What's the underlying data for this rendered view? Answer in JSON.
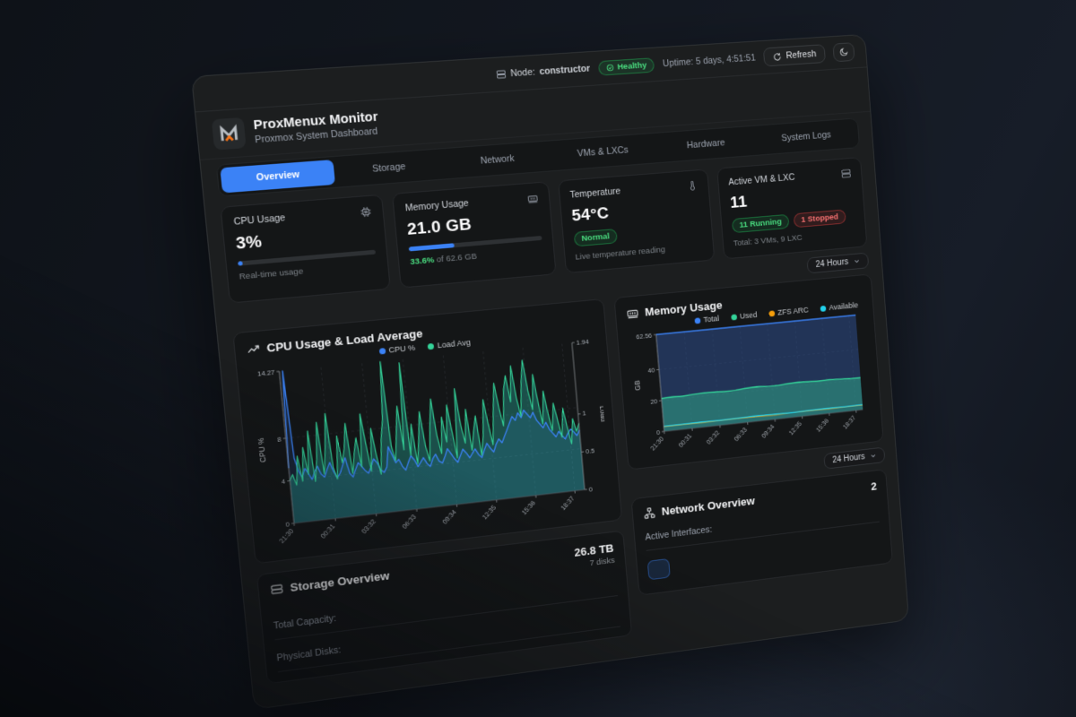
{
  "colors": {
    "accent_blue": "#3b82f6",
    "green": "#34d399",
    "green_text": "#4ade80",
    "orange": "#f59e0b",
    "cyan": "#22d3ee",
    "red": "#f87171",
    "logo_orange": "#f97316",
    "panel_bg": "#1c1e1f",
    "card_bg": "#141617"
  },
  "topbar": {
    "node_icon": "server-icon",
    "node_label": "Node:",
    "node_value": "constructor",
    "health_label": "Healthy",
    "uptime": "Uptime: 5 days, 4:51:51",
    "refresh_label": "Refresh",
    "theme_icon": "moon-icon"
  },
  "header": {
    "title": "ProxMenux Monitor",
    "subtitle": "Proxmox System Dashboard"
  },
  "tabs": [
    {
      "label": "Overview",
      "active": true
    },
    {
      "label": "Storage",
      "active": false
    },
    {
      "label": "Network",
      "active": false
    },
    {
      "label": "VMs & LXCs",
      "active": false
    },
    {
      "label": "Hardware",
      "active": false
    },
    {
      "label": "System Logs",
      "active": false
    }
  ],
  "stats": {
    "cpu": {
      "title": "CPU Usage",
      "icon": "cpu-icon",
      "value": "3%",
      "percent": 3,
      "caption": "Real-time usage"
    },
    "memory": {
      "title": "Memory Usage",
      "icon": "memory-icon",
      "value": "21.0 GB",
      "percent": 33.6,
      "caption_highlight": "33.6%",
      "caption_rest": " of 62.6 GB"
    },
    "temperature": {
      "title": "Temperature",
      "icon": "thermometer-icon",
      "value": "54°C",
      "badge": "Normal",
      "caption": "Live temperature reading"
    },
    "vms": {
      "title": "Active VM & LXC",
      "icon": "server-icon",
      "value": "11",
      "badge_running": "11 Running",
      "badge_stopped": "1 Stopped",
      "caption": "Total: 3 VMs, 9 LXC"
    }
  },
  "time_range_top": {
    "label": "24 Hours"
  },
  "time_range_bottom": {
    "label": "24 Hours"
  },
  "storage": {
    "icon": "hard-drive-icon",
    "title": "Storage Overview",
    "summary_value": "26.8 TB",
    "summary_caption": "7 disks",
    "row1_label": "Total Capacity:",
    "row2_label": "Physical Disks:"
  },
  "network": {
    "icon": "network-icon",
    "title": "Network Overview",
    "summary_value": "2",
    "row_label": "Active Interfaces:"
  },
  "chart_data": [
    {
      "type": "line",
      "title": "CPU Usage & Load Average",
      "icon": "trending-up-icon",
      "x_ticks": [
        "21:30",
        "00:31",
        "03:32",
        "06:33",
        "09:34",
        "12:35",
        "15:36",
        "18:37"
      ],
      "y_left": {
        "label": "CPU %",
        "ticks": [
          0,
          4,
          8,
          14.27
        ],
        "max": 14.27
      },
      "y_right": {
        "label": "Load",
        "ticks": [
          0,
          0.5,
          1,
          1.94
        ],
        "max": 1.94
      },
      "grid": true,
      "legend_position": "top-center",
      "series": [
        {
          "name": "CPU %",
          "color": "#3b82f6",
          "axis": "left",
          "width": 1.3,
          "fill": "rgba(59,130,246,0.14)",
          "values": [
            5.2,
            14.27,
            6.1,
            4.8,
            4.2,
            5.0,
            4.5,
            3.9,
            4.6,
            5.1,
            4.3,
            4.0,
            4.7,
            5.3,
            4.4,
            3.8,
            4.2,
            4.9,
            5.6,
            4.1,
            3.7,
            4.4,
            5.0,
            4.6,
            4.2,
            3.9,
            4.5,
            5.2,
            4.8,
            4.1,
            3.8,
            4.3,
            6.2,
            5.4,
            4.6,
            4.9,
            4.2,
            3.8,
            4.5,
            5.1,
            4.7,
            4.0,
            4.4,
            4.8,
            4.2,
            3.9,
            4.6,
            5.0,
            4.3,
            4.1,
            4.7,
            5.4,
            4.9,
            4.4,
            4.0,
            4.6,
            5.2,
            4.8,
            4.3,
            4.7,
            5.1,
            4.5,
            4.2,
            4.9,
            5.5,
            5.0,
            4.6,
            5.3,
            5.8,
            5.4,
            6.0,
            6.6,
            7.2,
            7.8,
            7.4,
            8.1,
            7.6,
            8.3,
            7.9,
            7.5,
            8.0,
            7.2,
            6.8,
            6.4,
            6.9,
            6.2,
            5.8,
            5.4,
            5.9,
            5.5,
            5.1,
            5.6,
            6.0,
            5.7,
            5.3,
            5.8
          ]
        },
        {
          "name": "Load Avg",
          "color": "#34d399",
          "axis": "right",
          "width": 1.1,
          "fill": "rgba(45,212,191,0.30)",
          "values": [
            0.55,
            0.62,
            0.48,
            0.85,
            0.52,
            0.95,
            0.6,
            1.15,
            0.5,
            0.78,
            1.25,
            0.58,
            0.92,
            1.35,
            0.65,
            0.5,
            1.05,
            0.7,
            0.88,
            1.2,
            0.55,
            0.8,
            1.0,
            0.62,
            1.3,
            0.9,
            0.55,
            1.1,
            0.75,
            0.5,
            0.95,
            1.2,
            1.94,
            0.85,
            0.65,
            1.0,
            1.35,
            0.78,
            1.9,
            0.7,
            1.1,
            0.58,
            0.9,
            1.25,
            0.8,
            0.6,
            1.05,
            1.4,
            0.92,
            0.68,
            1.15,
            0.82,
            1.3,
            0.95,
            0.6,
            1.5,
            1.02,
            0.78,
            1.22,
            0.68,
            0.92,
            1.12,
            0.6,
            0.85,
            1.32,
            1.0,
            0.72,
            1.15,
            1.52,
            1.18,
            0.95,
            1.42,
            1.6,
            1.25,
            1.72,
            1.3,
            1.05,
            1.5,
            1.78,
            1.38,
            1.12,
            1.58,
            1.22,
            0.92,
            1.35,
            1.05,
            0.82,
            1.18,
            0.95,
            0.72,
            1.1,
            0.85,
            0.62,
            0.95,
            0.78,
            0.88
          ]
        }
      ]
    },
    {
      "type": "area",
      "title": "Memory Usage",
      "icon": "memory-icon",
      "x_ticks": [
        "21:30",
        "00:31",
        "03:32",
        "06:33",
        "09:34",
        "12:35",
        "15:36",
        "18:37"
      ],
      "y_left": {
        "label": "GB",
        "ticks": [
          0,
          20,
          40,
          62.56
        ],
        "max": 62.56
      },
      "grid": true,
      "legend_position": "top-right",
      "series": [
        {
          "name": "Total",
          "color": "#3b82f6",
          "axis": "left",
          "width": 1.4,
          "fill": "rgba(46,78,140,0.55)",
          "values": [
            62.56,
            62.56
          ]
        },
        {
          "name": "Used",
          "color": "#34d399",
          "axis": "left",
          "width": 1.4,
          "fill": "rgba(52,211,153,0.38)",
          "values": [
            21.4,
            21.6,
            21.3,
            21.8,
            22.1,
            21.9,
            21.5,
            21.7,
            22.2,
            22.4,
            22.0,
            21.8,
            22.3,
            22.6,
            22.2,
            21.9,
            22.1,
            21.7,
            21.4,
            21.2
          ]
        },
        {
          "name": "ZFS ARC",
          "color": "#f59e0b",
          "axis": "left",
          "width": 1.0,
          "values": [
            3.0,
            3.1,
            2.9,
            3.0,
            3.2,
            3.0,
            2.8,
            3.0,
            3.1,
            2.9,
            3.0,
            3.0
          ]
        },
        {
          "name": "Available",
          "color": "#22d3ee",
          "axis": "left",
          "width": 1.3,
          "values": [
            3.4,
            3.3,
            3.5,
            3.2,
            3.4,
            3.6,
            3.3,
            3.1,
            3.4,
            3.5,
            3.2,
            3.3
          ]
        }
      ]
    }
  ]
}
